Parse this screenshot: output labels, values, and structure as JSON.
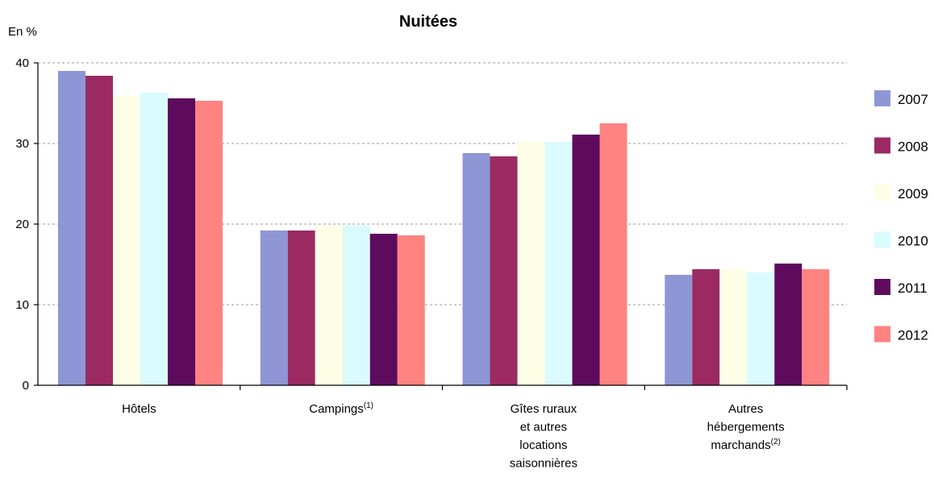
{
  "chart_data": {
    "type": "bar",
    "title": "Nuitées",
    "ylabel": "En %",
    "ylim": [
      0,
      40
    ],
    "yticks": [
      "0",
      "10",
      "20",
      "30",
      "40"
    ],
    "grid": true,
    "legend_position": "right",
    "categories": [
      {
        "lines": [
          "Hôtels"
        ],
        "sup": ""
      },
      {
        "lines": [
          "Campings"
        ],
        "sup": "(1)"
      },
      {
        "lines": [
          "Gîtes ruraux",
          "et autres",
          "locations",
          "saisonnières"
        ],
        "sup": ""
      },
      {
        "lines": [
          "Autres",
          "hébergements",
          "marchands"
        ],
        "sup": "(2)"
      }
    ],
    "series": [
      {
        "name": "2007",
        "color": "#8e96d6",
        "values": [
          39.0,
          19.2,
          28.8,
          13.7
        ]
      },
      {
        "name": "2008",
        "color": "#9b2a63",
        "values": [
          38.4,
          19.2,
          28.4,
          14.4
        ]
      },
      {
        "name": "2009",
        "color": "#fefee6",
        "values": [
          35.9,
          19.8,
          30.2,
          14.4
        ]
      },
      {
        "name": "2010",
        "color": "#d9fbfd",
        "values": [
          36.3,
          19.8,
          30.2,
          14.0
        ]
      },
      {
        "name": "2011",
        "color": "#5e0b5e",
        "values": [
          35.6,
          18.8,
          31.1,
          15.1
        ]
      },
      {
        "name": "2012",
        "color": "#fe8381",
        "values": [
          35.3,
          18.6,
          32.5,
          14.4
        ]
      }
    ]
  }
}
